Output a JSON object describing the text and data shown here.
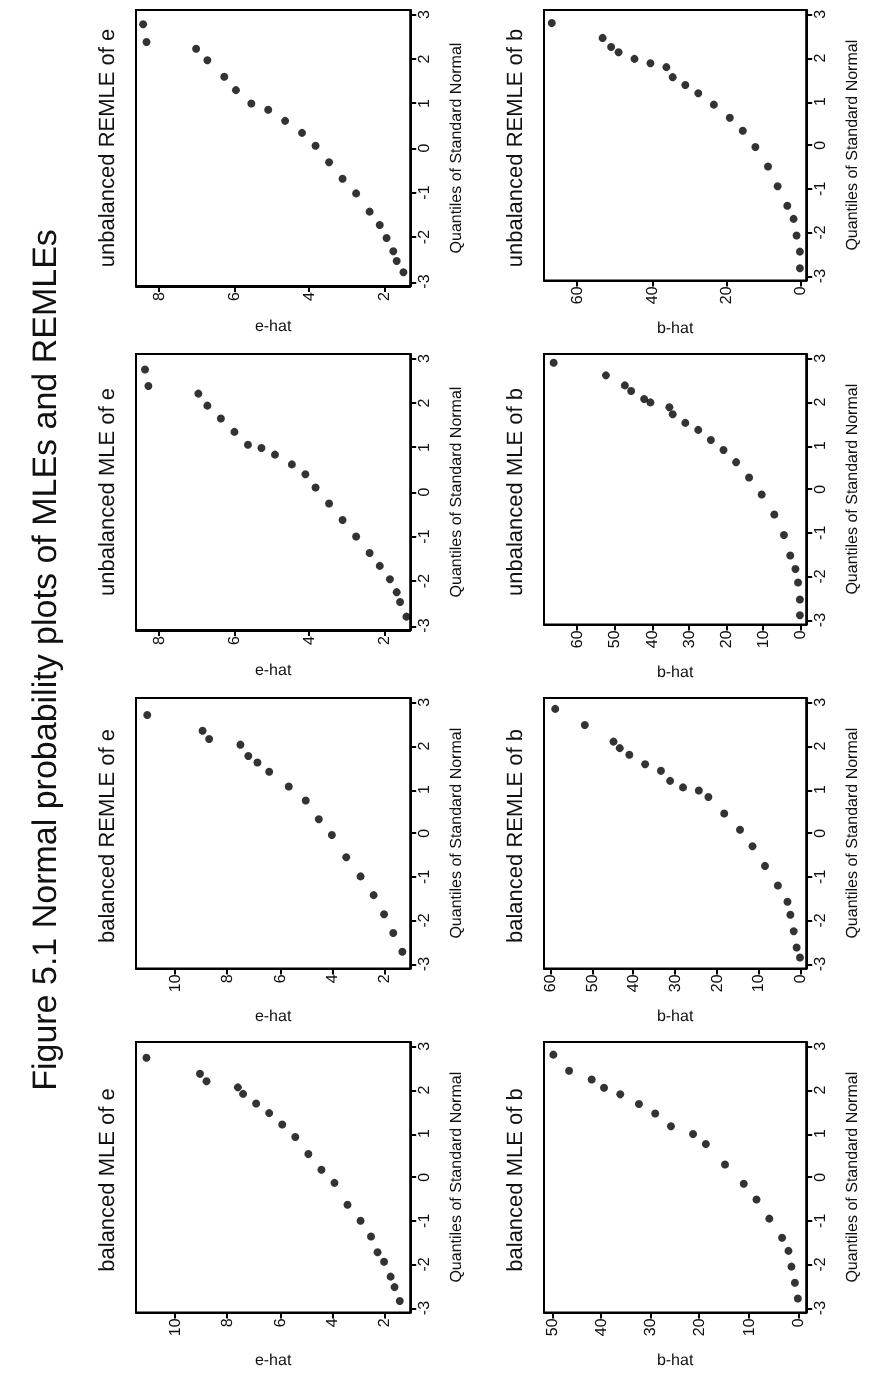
{
  "chart_data": [
    {
      "type": "other",
      "title": "Figure 5.1 Normal probability plots of MLEs and REMLEs"
    },
    {
      "type": "scatter",
      "title": "balanced MLE of e",
      "ylabel": "Quantiles of Standard Normal",
      "xlabel": "e-hat",
      "color": "#000000",
      "marker": "circle",
      "ylim": [
        -3.1,
        3.1
      ],
      "yticks": [
        -3,
        -2,
        -1,
        0,
        1,
        2,
        3
      ],
      "xlim": [
        11.5,
        1
      ],
      "xticks": [
        10,
        8,
        6,
        4,
        2
      ],
      "values": [
        2.74,
        2.37,
        2.2,
        2.06,
        1.91,
        1.69,
        1.47,
        1.21,
        0.92,
        0.53,
        0.17,
        -0.13,
        -0.63,
        -1.0,
        -1.36,
        -1.72,
        -1.94,
        -2.28,
        -2.52,
        -2.84
      ],
      "x": [
        11.1,
        9.05,
        8.8,
        7.6,
        7.4,
        6.9,
        6.4,
        5.9,
        5.4,
        4.9,
        4.4,
        3.9,
        3.4,
        2.9,
        2.5,
        2.25,
        2.0,
        1.75,
        1.6,
        1.4
      ]
    },
    {
      "type": "scatter",
      "title": "balanced REMLE of e",
      "ylabel": "Quantiles of Standard Normal",
      "xlabel": "e-hat",
      "color": "#000000",
      "marker": "circle",
      "ylim": [
        -3.1,
        3.1
      ],
      "yticks": [
        -3,
        -2,
        -1,
        0,
        1,
        2,
        3
      ],
      "xlim": [
        11.5,
        1
      ],
      "xticks": [
        10,
        8,
        6,
        4,
        2
      ],
      "values": [
        2.71,
        2.35,
        2.16,
        2.03,
        1.77,
        1.62,
        1.41,
        1.07,
        0.75,
        0.32,
        -0.04,
        -0.55,
        -0.99,
        -1.42,
        -1.86,
        -2.29,
        -2.72
      ],
      "x": [
        11.07,
        8.95,
        8.7,
        7.5,
        7.2,
        6.85,
        6.4,
        5.65,
        5.0,
        4.5,
        4.0,
        3.45,
        2.9,
        2.4,
        2.0,
        1.65,
        1.3
      ]
    },
    {
      "type": "scatter",
      "title": "unbalanced MLE of e",
      "ylabel": "Quantiles of Standard Normal",
      "xlabel": "e-hat",
      "color": "#000000",
      "marker": "circle",
      "ylim": [
        -3.1,
        3.1
      ],
      "yticks": [
        -3,
        -2,
        -1,
        0,
        1,
        2,
        3
      ],
      "xlim": [
        8.6,
        1.3
      ],
      "xticks": [
        8,
        6,
        4,
        2
      ],
      "values": [
        2.75,
        2.38,
        2.21,
        1.94,
        1.65,
        1.35,
        1.06,
        0.99,
        0.84,
        0.62,
        0.4,
        0.1,
        -0.26,
        -0.63,
        -1.0,
        -1.37,
        -1.66,
        -1.96,
        -2.25,
        -2.47,
        -2.8
      ],
      "x": [
        8.36,
        8.27,
        6.94,
        6.7,
        6.34,
        5.98,
        5.62,
        5.26,
        4.9,
        4.45,
        4.09,
        3.82,
        3.46,
        3.1,
        2.74,
        2.38,
        2.11,
        1.84,
        1.66,
        1.57,
        1.4
      ]
    },
    {
      "type": "scatter",
      "title": "unbalanced REMLE of e",
      "ylabel": "Quantiles of Standard Normal",
      "xlabel": "e-hat",
      "color": "#000000",
      "marker": "circle",
      "ylim": [
        -3.1,
        3.1
      ],
      "yticks": [
        -3,
        -2,
        -1,
        0,
        1,
        2,
        3
      ],
      "xlim": [
        8.6,
        1.3
      ],
      "xticks": [
        8,
        6,
        4,
        2
      ],
      "values": [
        2.78,
        2.38,
        2.23,
        1.97,
        1.6,
        1.3,
        1.0,
        0.86,
        0.61,
        0.34,
        0.05,
        -0.32,
        -0.69,
        -1.02,
        -1.43,
        -1.73,
        -2.02,
        -2.32,
        -2.54,
        -2.79
      ],
      "x": [
        8.41,
        8.32,
        7.0,
        6.7,
        6.25,
        5.94,
        5.53,
        5.08,
        4.63,
        4.18,
        3.82,
        3.46,
        3.1,
        2.74,
        2.38,
        2.11,
        1.93,
        1.75,
        1.66,
        1.48
      ]
    },
    {
      "type": "scatter",
      "title": "balanced MLE of b",
      "ylabel": "Quantiles of Standard Normal",
      "xlabel": "b-hat",
      "color": "#000000",
      "marker": "circle",
      "ylim": [
        -3.1,
        3.1
      ],
      "yticks": [
        -3,
        -2,
        -1,
        0,
        1,
        2,
        3
      ],
      "xlim": [
        51.6,
        -1.7
      ],
      "xticks": [
        50,
        40,
        30,
        20,
        10,
        0
      ],
      "values": [
        2.81,
        2.44,
        2.24,
        2.05,
        1.9,
        1.68,
        1.46,
        1.17,
        0.99,
        0.76,
        0.29,
        -0.15,
        -0.51,
        -0.95,
        -1.39,
        -1.69,
        -2.05,
        -2.42,
        -2.78
      ],
      "x": [
        49.7,
        46.5,
        41.9,
        39.4,
        36.1,
        32.3,
        29.0,
        25.8,
        21.3,
        18.7,
        14.8,
        11.0,
        8.4,
        5.8,
        3.2,
        1.9,
        1.3,
        0.6,
        0
      ]
    },
    {
      "type": "scatter",
      "title": "balanced REMLE of b",
      "ylabel": "Quantiles of Standard Normal",
      "xlabel": "b-hat",
      "color": "#000000",
      "marker": "circle",
      "ylim": [
        -3.1,
        3.1
      ],
      "yticks": [
        -3,
        -2,
        -1,
        0,
        1,
        2,
        3
      ],
      "xlim": [
        61.5,
        -1.5
      ],
      "xticks": [
        60,
        50,
        40,
        30,
        20,
        10,
        0
      ],
      "values": [
        2.85,
        2.48,
        2.1,
        1.95,
        1.8,
        1.58,
        1.43,
        1.2,
        1.05,
        0.98,
        0.83,
        0.45,
        0.08,
        -0.3,
        -0.75,
        -1.2,
        -1.57,
        -1.87,
        -2.25,
        -2.62,
        -2.85
      ],
      "x": [
        58.8,
        51.7,
        44.8,
        43.3,
        41.0,
        37.2,
        33.4,
        31.2,
        28.1,
        24.3,
        22.0,
        18.2,
        14.4,
        11.4,
        8.4,
        5.3,
        3.0,
        2.3,
        1.5,
        0.8,
        0
      ]
    },
    {
      "type": "scatter",
      "title": "unbalanced MLE of b",
      "ylabel": "Quantiles of Standard Normal",
      "xlabel": "b-hat",
      "color": "#000000",
      "marker": "circle",
      "ylim": [
        -3.1,
        3.1
      ],
      "yticks": [
        -3,
        -2,
        -1,
        0,
        1,
        2,
        3
      ],
      "xlim": [
        69,
        -1.7
      ],
      "xticks": [
        60,
        50,
        40,
        30,
        20,
        10,
        0
      ],
      "values": [
        2.9,
        2.61,
        2.38,
        2.25,
        2.07,
        1.99,
        1.88,
        1.72,
        1.52,
        1.36,
        1.13,
        0.9,
        0.62,
        0.27,
        -0.12,
        -0.58,
        -1.05,
        -1.52,
        -1.83,
        -2.14,
        -2.53,
        -2.89
      ],
      "x": [
        66.4,
        52.3,
        47.2,
        45.5,
        42.0,
        40.3,
        35.2,
        34.3,
        30.9,
        27.4,
        24.0,
        20.6,
        17.2,
        13.7,
        10.3,
        6.9,
        4.3,
        2.6,
        1.2,
        0.5,
        0,
        0
      ]
    },
    {
      "type": "scatter",
      "title": "unbalanced REMLE of b",
      "ylabel": "Quantiles of Standard Normal",
      "xlabel": "b-hat",
      "color": "#000000",
      "marker": "circle",
      "ylim": [
        -3.1,
        3.1
      ],
      "yticks": [
        -3,
        -2,
        -1,
        0,
        1,
        2,
        3
      ],
      "xlim": [
        69,
        -1.7
      ],
      "xticks": [
        60,
        40,
        20,
        0
      ],
      "values": [
        2.8,
        2.46,
        2.25,
        2.13,
        1.98,
        1.88,
        1.79,
        1.56,
        1.38,
        1.19,
        0.93,
        0.63,
        0.33,
        -0.04,
        -0.49,
        -0.94,
        -1.39,
        -1.69,
        -2.07,
        -2.44,
        -2.82
      ],
      "x": [
        66.9,
        53.2,
        50.9,
        48.9,
        44.6,
        40.3,
        36.0,
        34.3,
        30.9,
        27.4,
        23.2,
        18.9,
        15.4,
        12.0,
        8.6,
        6.0,
        3.4,
        1.7,
        0.9,
        0,
        0
      ]
    }
  ]
}
